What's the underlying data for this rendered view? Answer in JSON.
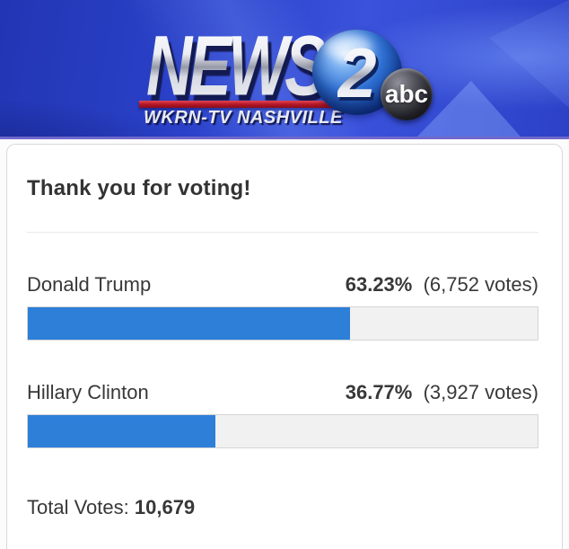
{
  "header": {
    "station": "NEWS",
    "channel": "2",
    "network": "abc",
    "tagline": "WKRN-TV NASHVILLE",
    "colors": {
      "banner_blue": "#2b42cb",
      "red_bar": "#b01525"
    }
  },
  "poll": {
    "title": "Thank you for voting!",
    "results": [
      {
        "name": "Donald Trump",
        "percent": "63.23%",
        "votes": "(6,752 votes)",
        "percent_value": 63.23
      },
      {
        "name": "Hillary Clinton",
        "percent": "36.77%",
        "votes": "(3,927 votes)",
        "percent_value": 36.77
      }
    ],
    "total_label": "Total Votes:",
    "total_value": "10,679",
    "bar_color": "#2e7fd8"
  },
  "chart_data": {
    "type": "bar",
    "title": "Thank you for voting!",
    "categories": [
      "Donald Trump",
      "Hillary Clinton"
    ],
    "values": [
      63.23,
      36.77
    ],
    "value_labels": [
      "63.23% (6,752 votes)",
      "36.77% (3,927 votes)"
    ],
    "vote_counts": [
      6752,
      3927
    ],
    "total_votes": 10679,
    "xlim": [
      0,
      100
    ],
    "bar_color": "#2e7fd8"
  }
}
